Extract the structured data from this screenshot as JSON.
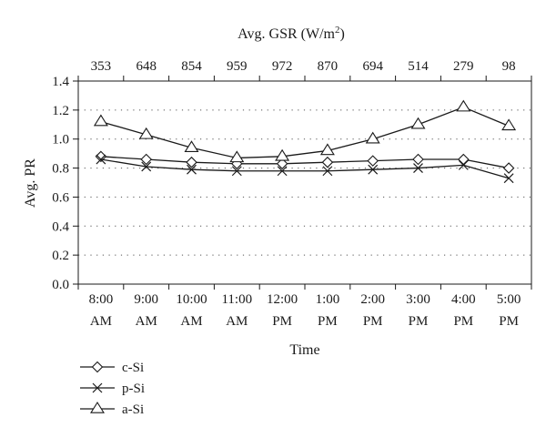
{
  "chart_data": {
    "type": "line",
    "title": "",
    "top_axis": {
      "label_prefix": "Avg. GSR (W/m",
      "label_superscript": "2",
      "label_suffix": ")",
      "ticks": [
        "353",
        "648",
        "854",
        "959",
        "972",
        "870",
        "694",
        "514",
        "279",
        "98"
      ]
    },
    "xlabel": "Time",
    "ylabel": "Avg. PR",
    "categories": [
      [
        "8:00",
        "AM"
      ],
      [
        "9:00",
        "AM"
      ],
      [
        "10:00",
        "AM"
      ],
      [
        "11:00",
        "AM"
      ],
      [
        "12:00",
        "PM"
      ],
      [
        "1:00",
        "PM"
      ],
      [
        "2:00",
        "PM"
      ],
      [
        "3:00",
        "PM"
      ],
      [
        "4:00",
        "PM"
      ],
      [
        "5:00",
        "PM"
      ]
    ],
    "ylim": [
      0.0,
      1.4
    ],
    "yticks": [
      "0.0",
      "0.2",
      "0.4",
      "0.6",
      "0.8",
      "1.0",
      "1.2",
      "1.4"
    ],
    "grid": "horizontal-dotted",
    "legend_position": "bottom-left",
    "series": [
      {
        "name": "c-Si",
        "marker": "diamond",
        "values": [
          0.88,
          0.86,
          0.84,
          0.83,
          0.83,
          0.84,
          0.85,
          0.86,
          0.86,
          0.8
        ]
      },
      {
        "name": "p-Si",
        "marker": "x",
        "values": [
          0.86,
          0.81,
          0.79,
          0.78,
          0.78,
          0.78,
          0.79,
          0.8,
          0.82,
          0.73
        ]
      },
      {
        "name": "a-Si",
        "marker": "triangle",
        "values": [
          1.12,
          1.03,
          0.94,
          0.87,
          0.88,
          0.92,
          1.0,
          1.1,
          1.22,
          1.09
        ]
      }
    ],
    "colors": {
      "line": "#1a1a1a",
      "grid": "#555555",
      "background": "#ffffff"
    }
  }
}
